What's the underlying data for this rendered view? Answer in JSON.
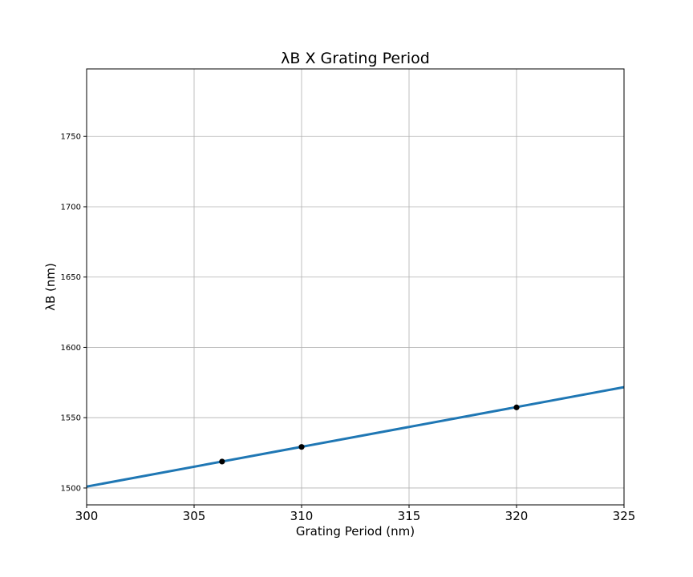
{
  "chart_data": {
    "type": "line",
    "title": "λB X Grating Period",
    "xlabel": "Grating Period (nm)",
    "ylabel": "λB (nm)",
    "xlim": [
      300,
      325
    ],
    "ylim": [
      1488,
      1798
    ],
    "x_ticks": [
      300,
      305,
      310,
      315,
      320,
      325
    ],
    "y_ticks": [
      1500,
      1550,
      1600,
      1650,
      1700,
      1750
    ],
    "grid": true,
    "series": [
      {
        "color": "#1f77b4",
        "x": [
          300,
          325
        ],
        "y": [
          1501,
          1571.7
        ]
      }
    ],
    "points": {
      "color": "#000000",
      "x": [
        306.3,
        310,
        320
      ],
      "y": [
        1518.8,
        1529.2,
        1557.3
      ]
    }
  }
}
